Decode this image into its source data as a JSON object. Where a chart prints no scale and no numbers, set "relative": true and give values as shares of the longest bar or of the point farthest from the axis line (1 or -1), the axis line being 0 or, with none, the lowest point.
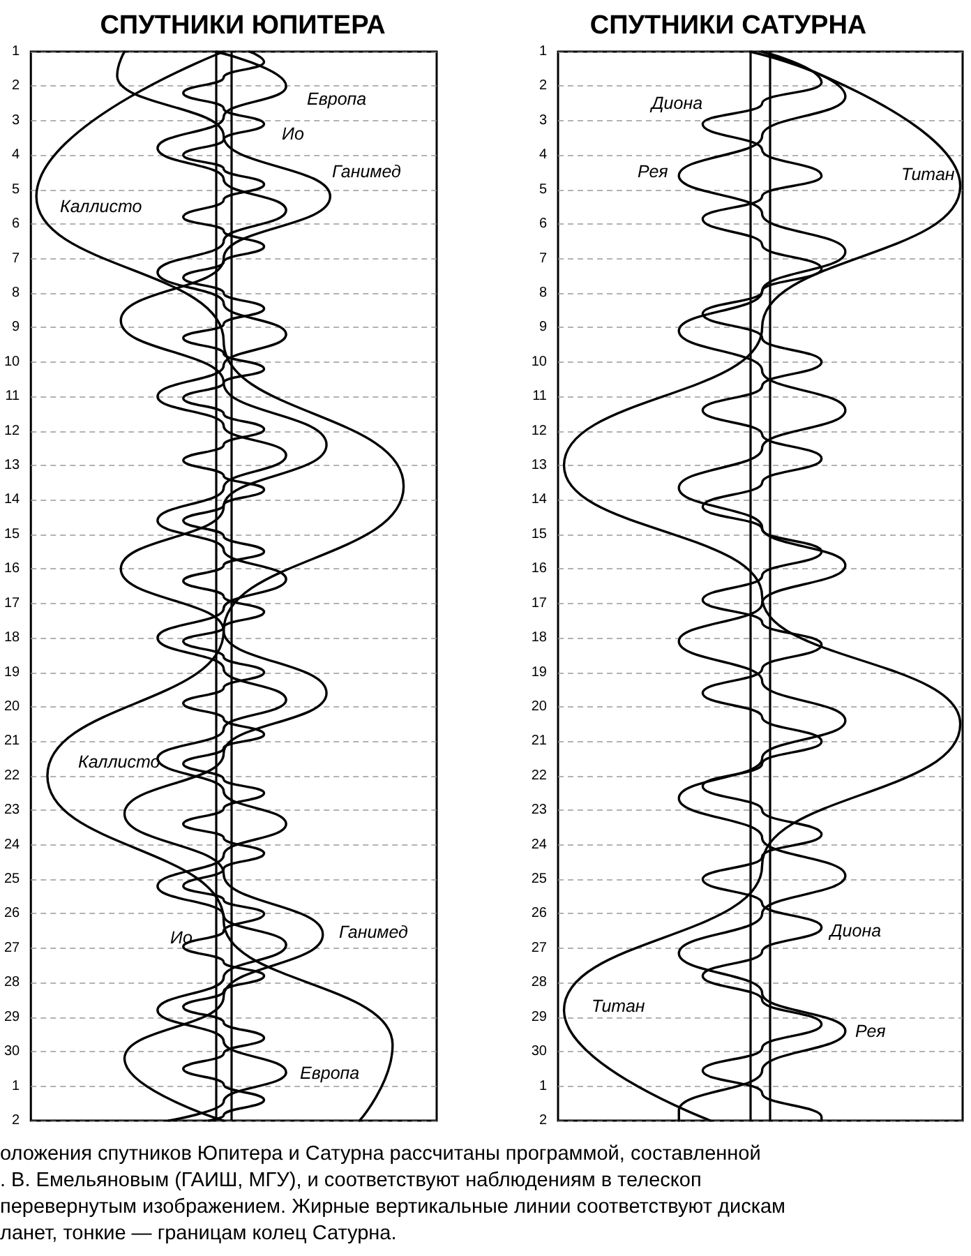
{
  "chart_data": [
    {
      "type": "line",
      "title": "СПУТНИКИ ЮПИТЕРА",
      "orientation": "horizontal",
      "relative": true,
      "marker": "none",
      "grid": "y",
      "tick_labels": "y",
      "ylim": [
        "--07-02",
        "--06-01"
      ],
      "yticks": [
        {
          "value": "--06-01",
          "label": "1"
        },
        {
          "value": "--06-02",
          "label": "2"
        },
        {
          "value": "--06-03",
          "label": "3"
        },
        {
          "value": "--06-04",
          "label": "4"
        },
        {
          "value": "--06-05",
          "label": "5"
        },
        {
          "value": "--06-06",
          "label": "6"
        },
        {
          "value": "--06-07",
          "label": "7"
        },
        {
          "value": "--06-08",
          "label": "8"
        },
        {
          "value": "--06-09",
          "label": "9"
        },
        {
          "value": "--06-10",
          "label": "10"
        },
        {
          "value": "--06-11",
          "label": "11"
        },
        {
          "value": "--06-12",
          "label": "12"
        },
        {
          "value": "--06-13",
          "label": "13"
        },
        {
          "value": "--06-14",
          "label": "14"
        },
        {
          "value": "--06-15",
          "label": "15"
        },
        {
          "value": "--06-16",
          "label": "16"
        },
        {
          "value": "--06-17",
          "label": "17"
        },
        {
          "value": "--06-18",
          "label": "18"
        },
        {
          "value": "--06-19",
          "label": "19"
        },
        {
          "value": "--06-20",
          "label": "20"
        },
        {
          "value": "--06-21",
          "label": "21"
        },
        {
          "value": "--06-22",
          "label": "22"
        },
        {
          "value": "--06-23",
          "label": "23"
        },
        {
          "value": "--06-24",
          "label": "24"
        },
        {
          "value": "--06-25",
          "label": "25"
        },
        {
          "value": "--06-26",
          "label": "26"
        },
        {
          "value": "--06-27",
          "label": "27"
        },
        {
          "value": "--06-28",
          "label": "28"
        },
        {
          "value": "--06-29",
          "label": "29"
        },
        {
          "value": "--06-30",
          "label": "30"
        },
        {
          "value": "--07-01",
          "label": "1"
        },
        {
          "value": "--07-02",
          "label": "2"
        }
      ],
      "ref_lines": [
        {
          "axis": "x",
          "value": 0.49,
          "color": "#000000"
        },
        {
          "axis": "x",
          "value": 0.53,
          "color": "#000000"
        }
      ],
      "series": [
        {
          "color": "#000000",
          "x": [
            "--06-01",
            "--06-05T04:48",
            "--06-09T09:36",
            "--06-13T14:24",
            "--06-17T19:12",
            "--06-22",
            "--06-26T04:48",
            "--06-29T19:12",
            "--07-02"
          ],
          "values": [
            0.51,
            0,
            0.51,
            1,
            0.51,
            0.03,
            0.51,
            0.97,
            0.88
          ]
        },
        {
          "color": "#000000",
          "x": [
            "--06-01",
            "--06-01T16:48",
            "--06-03T10:48",
            "--06-05T04:48",
            "--06-07",
            "--06-08T19:12",
            "--06-10T14:24",
            "--06-12T09:36",
            "--06-14T04:48",
            "--06-16",
            "--06-17T19:12",
            "--06-19T14:24",
            "--06-21T08:24",
            "--06-23T02:24",
            "--06-24T20:24",
            "--06-26T14:24",
            "--06-28T09:36",
            "--06-30T04:48",
            "--07-02"
          ],
          "values": [
            0.24,
            0.22,
            0.51,
            0.8,
            0.51,
            0.23,
            0.51,
            0.79,
            0.51,
            0.23,
            0.51,
            0.79,
            0.51,
            0.24,
            0.51,
            0.78,
            0.51,
            0.24,
            0.51
          ]
        },
        {
          "color": "#000000",
          "x": [
            "--06-01",
            "--06-02",
            "--06-02T21:36",
            "--06-03T19:12",
            "--06-04T16:48",
            "--06-05T14:24",
            "--06-06T12:00",
            "--06-07T09:36",
            "--06-08T07:12",
            "--06-09T04:48",
            "--06-10T02:24",
            "--06-11",
            "--06-11T20:24",
            "--06-12T16:48",
            "--06-13T15:36",
            "--06-14T14:24",
            "--06-15T10:48",
            "--06-16T07:12",
            "--06-17T03:36",
            "--06-18",
            "--06-18T21:36",
            "--06-19T19:12",
            "--06-20T15:36",
            "--06-21T12:00",
            "--06-22T10:48",
            "--06-23T09:36",
            "--06-24T07:12",
            "--06-25T04:48",
            "--06-26T01:12",
            "--06-26T21:36",
            "--06-27T20:24",
            "--06-28T19:12",
            "--06-29T16:48",
            "--06-30T14:24",
            "--07-01T10:48",
            "--07-02"
          ],
          "values": [
            0.49,
            0.68,
            0.51,
            0.33,
            0.51,
            0.68,
            0.51,
            0.33,
            0.51,
            0.68,
            0.51,
            0.33,
            0.51,
            0.68,
            0.51,
            0.33,
            0.51,
            0.68,
            0.51,
            0.33,
            0.51,
            0.68,
            0.51,
            0.33,
            0.51,
            0.68,
            0.51,
            0.33,
            0.51,
            0.68,
            0.51,
            0.33,
            0.51,
            0.68,
            0.51,
            0.36
          ]
        },
        {
          "color": "#000000",
          "x": [
            "--06-01",
            "--06-01T07:12",
            "--06-01T18:00",
            "--06-02T04:48",
            "--06-02T15:36",
            "--06-03T02:24",
            "--06-03T13:12",
            "--06-04",
            "--06-04T09:36",
            "--06-04T20:24",
            "--06-05T07:12",
            "--06-05T19:12",
            "--06-06T04:48",
            "--06-06T15:36",
            "--06-07T02:24",
            "--06-07T13:12",
            "--06-08",
            "--06-08T10:48",
            "--06-08T21:36",
            "--06-09T07:12",
            "--06-09T18:00",
            "--06-10T04:48",
            "--06-10T14:24",
            "--06-11T01:12",
            "--06-11T12:00",
            "--06-11T22:48",
            "--06-12T09:36",
            "--06-12T20:24",
            "--06-13T07:12",
            "--06-13T16:48",
            "--06-14T03:36",
            "--06-14T14:24",
            "--06-15T01:12",
            "--06-15T12:00",
            "--06-15T21:36",
            "--06-16T08:24",
            "--06-16T19:12",
            "--06-17T06:00",
            "--06-17T16:48",
            "--06-18T02:24",
            "--06-18T13:12",
            "--06-19",
            "--06-19T10:48",
            "--06-19T21:36",
            "--06-20T08:24",
            "--06-20T19:12",
            "--06-21T04:48",
            "--06-21T15:36",
            "--06-22T02:24",
            "--06-22T12:00",
            "--06-22T22:48",
            "--06-23T09:36",
            "--06-23T19:12",
            "--06-24T06:00",
            "--06-24T16:48",
            "--06-25T04:48",
            "--06-25T14:24",
            "--06-26",
            "--06-26T12:00",
            "--06-26T22:48",
            "--06-27T09:36",
            "--06-27T19:12",
            "--06-28T06:00",
            "--06-28T16:48",
            "--06-29T03:36",
            "--06-29T14:24",
            "--06-30T01:12",
            "--06-30T12:00",
            "--06-30T22:48",
            "--07-01T09:36",
            "--07-01T20:24",
            "--07-02"
          ],
          "values": [
            0.58,
            0.62,
            0.51,
            0.4,
            0.51,
            0.62,
            0.51,
            0.4,
            0.51,
            0.62,
            0.51,
            0.4,
            0.51,
            0.62,
            0.51,
            0.4,
            0.51,
            0.62,
            0.51,
            0.4,
            0.51,
            0.62,
            0.51,
            0.4,
            0.51,
            0.62,
            0.51,
            0.4,
            0.51,
            0.62,
            0.51,
            0.4,
            0.51,
            0.62,
            0.51,
            0.4,
            0.51,
            0.62,
            0.51,
            0.4,
            0.51,
            0.62,
            0.51,
            0.4,
            0.51,
            0.62,
            0.51,
            0.4,
            0.51,
            0.62,
            0.51,
            0.4,
            0.51,
            0.62,
            0.51,
            0.4,
            0.51,
            0.62,
            0.51,
            0.4,
            0.51,
            0.62,
            0.51,
            0.4,
            0.51,
            0.62,
            0.51,
            0.4,
            0.51,
            0.62,
            0.51,
            0.47
          ]
        }
      ],
      "annotations": [
        "Европа",
        "Ио",
        "Ганимед",
        "Каллисто",
        "Каллисто",
        "Ио",
        "Ганимед",
        "Европа",
        "оложения спутников Юпитера и Сатурна рассчитаны программой, составленной\n. В. Емельяновым (ГАИШ, МГУ), и соответствуют наблюдениям в телескоп\nперевернутым изображением. Жирные вертикальные линии соответствуют дискам\nланет, тонкие — границам колец Сатурна."
      ]
    },
    {
      "type": "line",
      "title": "СПУТНИКИ САТУРНА",
      "orientation": "horizontal",
      "relative": true,
      "marker": "none",
      "grid": "y",
      "tick_labels": "y",
      "ylim": [
        "--07-02",
        "--06-01"
      ],
      "yticks": [
        {
          "value": "--06-01",
          "label": "1"
        },
        {
          "value": "--06-02",
          "label": "2"
        },
        {
          "value": "--06-03",
          "label": "3"
        },
        {
          "value": "--06-04",
          "label": "4"
        },
        {
          "value": "--06-05",
          "label": "5"
        },
        {
          "value": "--06-06",
          "label": "6"
        },
        {
          "value": "--06-07",
          "label": "7"
        },
        {
          "value": "--06-08",
          "label": "8"
        },
        {
          "value": "--06-09",
          "label": "9"
        },
        {
          "value": "--06-10",
          "label": "10"
        },
        {
          "value": "--06-11",
          "label": "11"
        },
        {
          "value": "--06-12",
          "label": "12"
        },
        {
          "value": "--06-13",
          "label": "13"
        },
        {
          "value": "--06-14",
          "label": "14"
        },
        {
          "value": "--06-15",
          "label": "15"
        },
        {
          "value": "--06-16",
          "label": "16"
        },
        {
          "value": "--06-17",
          "label": "17"
        },
        {
          "value": "--06-18",
          "label": "18"
        },
        {
          "value": "--06-19",
          "label": "19"
        },
        {
          "value": "--06-20",
          "label": "20"
        },
        {
          "value": "--06-21",
          "label": "21"
        },
        {
          "value": "--06-22",
          "label": "22"
        },
        {
          "value": "--06-23",
          "label": "23"
        },
        {
          "value": "--06-24",
          "label": "24"
        },
        {
          "value": "--06-25",
          "label": "25"
        },
        {
          "value": "--06-26",
          "label": "26"
        },
        {
          "value": "--06-27",
          "label": "27"
        },
        {
          "value": "--06-28",
          "label": "28"
        },
        {
          "value": "--06-29",
          "label": "29"
        },
        {
          "value": "--06-30",
          "label": "30"
        },
        {
          "value": "--07-01",
          "label": "1"
        },
        {
          "value": "--07-02",
          "label": "2"
        }
      ],
      "ref_lines": [
        {
          "axis": "x",
          "value": 0.47,
          "color": "#000000"
        },
        {
          "axis": "x",
          "value": 0.52,
          "color": "#000000"
        }
      ],
      "series": [
        {
          "color": "#000000",
          "x": [
            "--06-01",
            "--06-04T21:36",
            "--06-09",
            "--06-13",
            "--06-16T19:12",
            "--06-20T12:00",
            "--06-24T14:24",
            "--06-28T19:12",
            "--07-02"
          ],
          "values": [
            0.5,
            1,
            0.5,
            0,
            0.5,
            1,
            0.5,
            0,
            0.37
          ]
        },
        {
          "color": "#000000",
          "x": [
            "--06-01",
            "--06-02T07:12",
            "--06-03T10:48",
            "--06-04T14:24",
            "--06-05T16:48",
            "--06-06T19:12",
            "--06-07T22:48",
            "--06-09T02:24",
            "--06-10T06:00",
            "--06-11T09:36",
            "--06-12T12:00",
            "--06-13T15:36",
            "--06-14T19:12",
            "--06-15T21:36",
            "--06-17",
            "--06-18T02:24",
            "--06-19T06:00",
            "--06-20T09:36",
            "--06-21T12:00",
            "--06-22T15:36",
            "--06-23T19:12",
            "--06-24T21:36",
            "--06-26",
            "--06-27T03:36",
            "--06-28T07:12",
            "--06-29T09:36",
            "--06-30T13:12",
            "--07-01T16:48",
            "--07-02"
          ],
          "values": [
            0.47,
            0.71,
            0.5,
            0.29,
            0.5,
            0.71,
            0.5,
            0.29,
            0.5,
            0.71,
            0.5,
            0.29,
            0.5,
            0.71,
            0.5,
            0.29,
            0.5,
            0.71,
            0.5,
            0.29,
            0.5,
            0.71,
            0.5,
            0.29,
            0.5,
            0.71,
            0.5,
            0.29,
            0.29
          ]
        },
        {
          "color": "#000000",
          "x": [
            "--06-01",
            "--06-01T21:36",
            "--06-02T12:00",
            "--06-03T02:24",
            "--06-03T20:24",
            "--06-04T14:24",
            "--06-05T04:48",
            "--06-05T20:24",
            "--06-06T14:24",
            "--06-07T07:12",
            "--06-07T22:48",
            "--06-08T14:24",
            "--06-09T07:12",
            "--06-10",
            "--06-10T16:48",
            "--06-11T09:36",
            "--06-12T02:24",
            "--06-12T19:12",
            "--06-13T12:00",
            "--06-14T04:48",
            "--06-14T20:24",
            "--06-15T12:00",
            "--06-16T04:48",
            "--06-16T21:36",
            "--06-17T13:12",
            "--06-18T04:48",
            "--06-18T21:36",
            "--06-19T14:24",
            "--06-20T07:12",
            "--06-21",
            "--06-21T15:36",
            "--06-22T07:12",
            "--06-23",
            "--06-23T16:48",
            "--06-24T08:24",
            "--06-25",
            "--06-25T16:48",
            "--06-26T09:36",
            "--06-27T02:24",
            "--06-27T19:12",
            "--06-28T12:00",
            "--06-29T04:48",
            "--06-29T21:36",
            "--06-30T13:12",
            "--07-01T04:48",
            "--07-01T21:36",
            "--07-02"
          ],
          "values": [
            0.5,
            0.65,
            0.5,
            0.35,
            0.5,
            0.65,
            0.5,
            0.35,
            0.5,
            0.65,
            0.5,
            0.35,
            0.5,
            0.65,
            0.5,
            0.35,
            0.5,
            0.65,
            0.5,
            0.35,
            0.5,
            0.65,
            0.5,
            0.35,
            0.5,
            0.65,
            0.5,
            0.35,
            0.5,
            0.65,
            0.5,
            0.35,
            0.5,
            0.65,
            0.5,
            0.35,
            0.5,
            0.65,
            0.5,
            0.35,
            0.5,
            0.65,
            0.5,
            0.35,
            0.5,
            0.65,
            0.65
          ]
        }
      ],
      "annotations": [
        "Диона",
        "Рея",
        "Титан",
        "Диона",
        "Титан",
        "Рея"
      ]
    }
  ]
}
